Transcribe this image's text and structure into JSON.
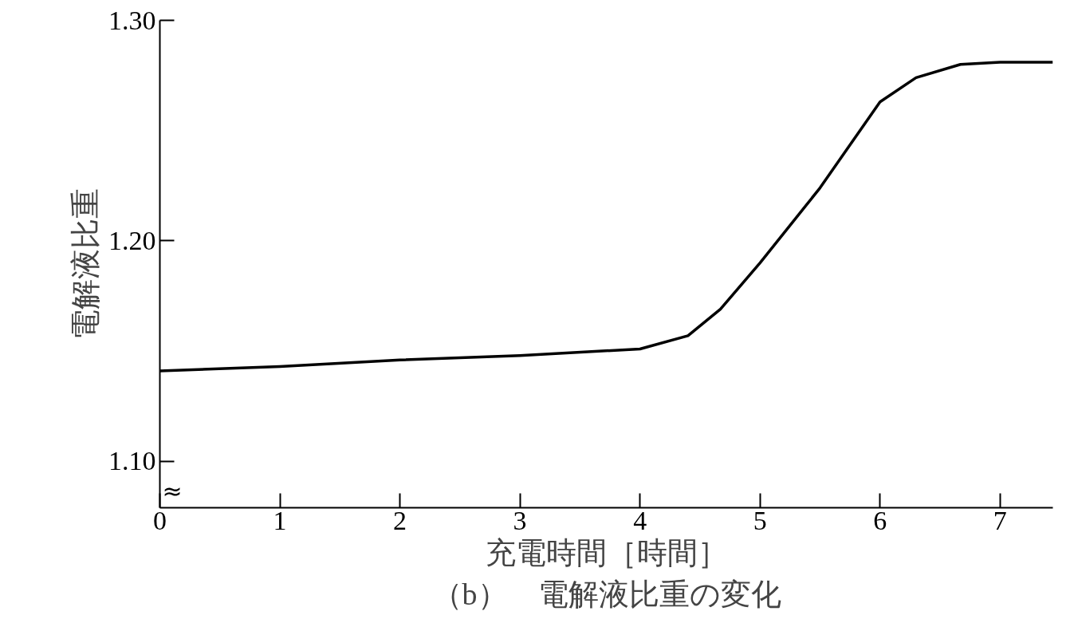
{
  "chart_data": {
    "type": "line",
    "title": "（b）　電解液比重の変化",
    "xlabel": "充電時間［時間］",
    "ylabel": "電解液比重",
    "x": [
      0,
      1,
      2,
      3,
      4,
      4.4,
      4.67,
      5,
      5.5,
      6,
      6.3,
      6.67,
      7,
      7.44
    ],
    "series": [
      {
        "color": "#000000",
        "values": [
          1.141,
          1.143,
          1.146,
          1.148,
          1.151,
          1.157,
          1.169,
          1.19,
          1.224,
          1.263,
          1.274,
          1.28,
          1.281,
          1.281
        ]
      }
    ],
    "xlim": [
      0,
      7.44
    ],
    "ylim": [
      1.079,
      1.3
    ],
    "xticks": [
      0,
      1,
      2,
      3,
      4,
      5,
      6,
      7
    ],
    "yticks": [
      {
        "value": 1.1,
        "label": "1.10"
      },
      {
        "value": 1.2,
        "label": "1.20"
      },
      {
        "value": 1.3,
        "label": "1.30"
      }
    ],
    "grid": false,
    "marker": "none",
    "line_style": "solid",
    "annotations": [
      "≈"
    ]
  }
}
